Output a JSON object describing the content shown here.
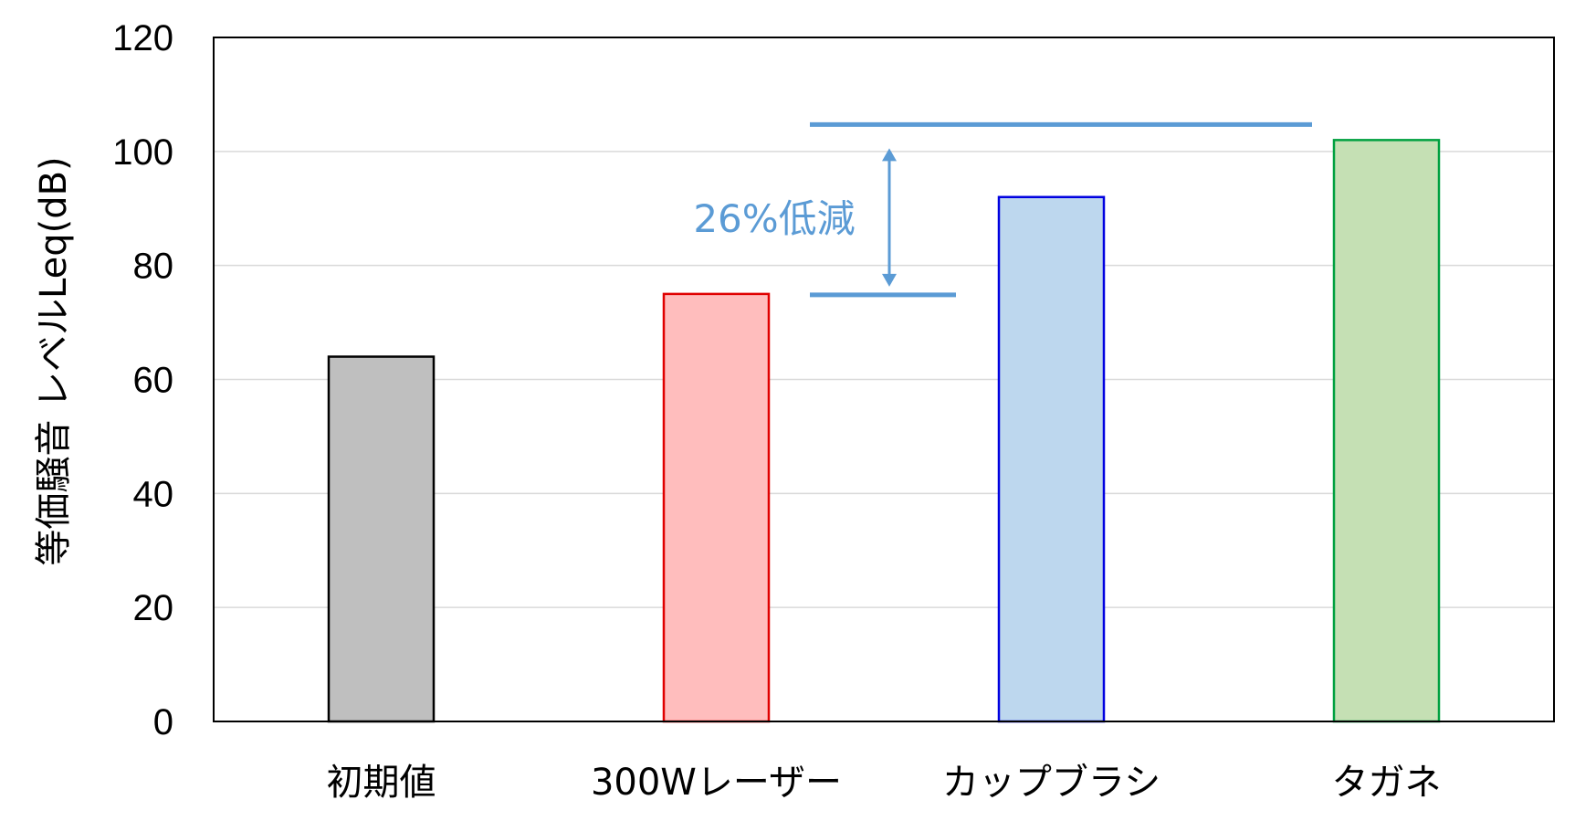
{
  "chart_data": {
    "type": "bar",
    "title": "",
    "xlabel": "",
    "ylabel": "等価騒音 レベルLeq(dB)",
    "ylim": [
      0,
      120
    ],
    "yticks": [
      0,
      20,
      40,
      60,
      80,
      100,
      120
    ],
    "grid": true,
    "categories": [
      "初期値",
      "300Wレーザー",
      "カップブラシ",
      "タガネ"
    ],
    "values": [
      64,
      75,
      92,
      102
    ],
    "bar_colors": [
      {
        "fill": "#bfbfbf",
        "stroke": "#000000"
      },
      {
        "fill": "#ffbdbd",
        "stroke": "#e00000"
      },
      {
        "fill": "#bdd7ee",
        "stroke": "#0000e0"
      },
      {
        "fill": "#c5e0b4",
        "stroke": "#00a040"
      }
    ],
    "annotation": {
      "text": "26%低減",
      "upper_value": 102,
      "lower_value": 75,
      "color": "#5b9bd5"
    }
  }
}
